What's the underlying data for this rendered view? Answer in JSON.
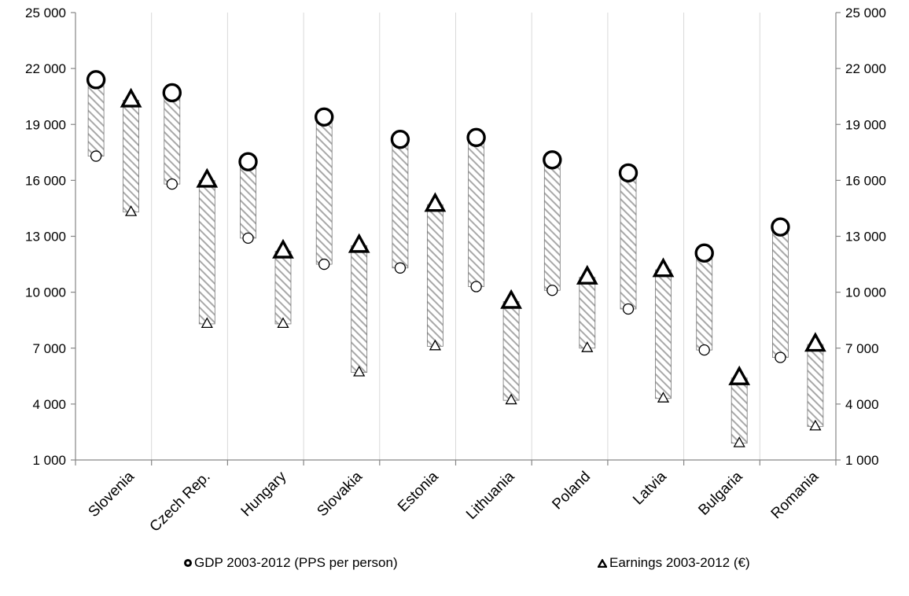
{
  "chart_data": {
    "type": "range-marker",
    "title": "",
    "xlabel": "",
    "ylabel": "",
    "ylim": [
      1000,
      25000
    ],
    "yticks": [
      1000,
      4000,
      7000,
      10000,
      13000,
      16000,
      19000,
      22000,
      25000
    ],
    "ytick_labels": [
      "1 000",
      "4 000",
      "7 000",
      "10 000",
      "13 000",
      "16 000",
      "19 000",
      "22 000",
      "25 000"
    ],
    "secondary_axis": true,
    "grid": "vertical separators between countries",
    "categories": [
      "Slovenia",
      "Czech Rep.",
      "Hungary",
      "Slovakia",
      "Estonia",
      "Lithuania",
      "Poland",
      "Latvia",
      "Bulgaria",
      "Romania"
    ],
    "series": [
      {
        "name": "GDP 2003-2012 (PPS per person)",
        "marker": "circle",
        "start_2003": [
          17300,
          15800,
          12900,
          11500,
          11300,
          10300,
          10100,
          9100,
          6900,
          6500
        ],
        "end_2012": [
          21400,
          20700,
          17000,
          19400,
          18200,
          18300,
          17100,
          16400,
          12100,
          13500
        ]
      },
      {
        "name": "Earnings 2003-2012 (€)",
        "marker": "triangle",
        "start_2003": [
          14300,
          8300,
          8300,
          5700,
          7100,
          4200,
          7000,
          4300,
          1900,
          2800
        ],
        "end_2012": [
          20300,
          16000,
          12200,
          12500,
          14700,
          9500,
          10800,
          11200,
          5400,
          7200
        ]
      }
    ],
    "legend": {
      "position": "bottom",
      "items": [
        "GDP 2003-2012 (PPS per person)",
        "Earnings 2003-2012 (€)"
      ]
    }
  }
}
